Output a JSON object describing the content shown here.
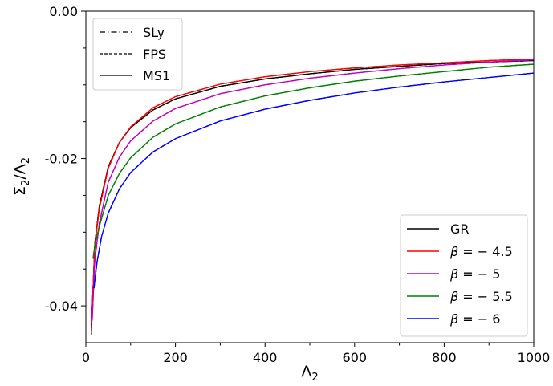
{
  "chart_data": {
    "type": "line",
    "xlabel_base": "Λ",
    "xlabel_sub": "2",
    "ylabel_parts": [
      "Σ",
      "2",
      "/Λ",
      "2"
    ],
    "xlim": [
      0,
      1000
    ],
    "ylim": [
      -0.045,
      0.0
    ],
    "xticks": [
      0,
      200,
      400,
      600,
      800,
      1000
    ],
    "xtick_labels": [
      "0",
      "200",
      "400",
      "600",
      "800",
      "1000"
    ],
    "yticks": [
      0.0,
      -0.02,
      -0.04
    ],
    "ytick_labels": [
      "0.00",
      "-0.02",
      "-0.04"
    ],
    "grid": false,
    "series": [
      {
        "name": "GR",
        "color": "#000000",
        "x": [
          12,
          20,
          30,
          50,
          75,
          100,
          150,
          200,
          300,
          400,
          500,
          600,
          700,
          800,
          900,
          1000
        ],
        "y": [
          -0.044,
          -0.0315,
          -0.0265,
          -0.0211,
          -0.0178,
          -0.0158,
          -0.0134,
          -0.0119,
          -0.0102,
          -0.0092,
          -0.0085,
          -0.0079,
          -0.0075,
          -0.0071,
          -0.0069,
          -0.0067
        ]
      },
      {
        "name": "β = −4.5",
        "label_beta": "β",
        "label_value": " = − 4.5",
        "color": "#ff0000",
        "x": [
          12,
          20,
          30,
          50,
          75,
          100,
          150,
          200,
          300,
          400,
          500,
          600,
          700,
          800,
          900,
          1000
        ],
        "y": [
          -0.0435,
          -0.0318,
          -0.0268,
          -0.0213,
          -0.0178,
          -0.0157,
          -0.0131,
          -0.0116,
          -0.0099,
          -0.0089,
          -0.0082,
          -0.0077,
          -0.0073,
          -0.007,
          -0.0067,
          -0.0065
        ]
      },
      {
        "name": "β = −5",
        "label_beta": "β",
        "label_value": " = − 5",
        "color": "#c000c0",
        "x": [
          14,
          20,
          30,
          50,
          75,
          100,
          150,
          200,
          300,
          400,
          500,
          600,
          700,
          800,
          900,
          1000
        ],
        "y": [
          -0.042,
          -0.0338,
          -0.0288,
          -0.0232,
          -0.0198,
          -0.0176,
          -0.0149,
          -0.0132,
          -0.0112,
          -0.01,
          -0.0091,
          -0.0084,
          -0.0078,
          -0.0073,
          -0.0069,
          -0.0066
        ]
      },
      {
        "name": "β = −5.5",
        "label_beta": "β",
        "label_value": " = − 5.5",
        "color": "#008000",
        "x": [
          16,
          20,
          30,
          50,
          75,
          100,
          150,
          200,
          300,
          400,
          500,
          600,
          700,
          800,
          900,
          1000
        ],
        "y": [
          -0.0336,
          -0.0318,
          -0.0292,
          -0.025,
          -0.022,
          -0.0199,
          -0.0171,
          -0.0153,
          -0.013,
          -0.0115,
          -0.0104,
          -0.0095,
          -0.0088,
          -0.0082,
          -0.0076,
          -0.0072
        ]
      },
      {
        "name": "β = −6",
        "label_beta": "β",
        "label_value": " = − 6",
        "color": "#0000ff",
        "x": [
          18,
          25,
          35,
          50,
          75,
          100,
          150,
          200,
          300,
          400,
          500,
          600,
          700,
          800,
          900,
          1000
        ],
        "y": [
          -0.0376,
          -0.034,
          -0.0306,
          -0.0274,
          -0.0241,
          -0.0219,
          -0.0191,
          -0.0173,
          -0.0149,
          -0.0133,
          -0.0121,
          -0.0111,
          -0.0103,
          -0.0096,
          -0.009,
          -0.0084
        ]
      }
    ],
    "eos_legend": [
      {
        "name": "SLy",
        "dash": "dashdot"
      },
      {
        "name": "FPS",
        "dash": "dashed"
      },
      {
        "name": "MS1",
        "dash": "solid"
      }
    ],
    "legend_eos_placement": "top-left",
    "legend_models_placement": "bottom-right"
  }
}
